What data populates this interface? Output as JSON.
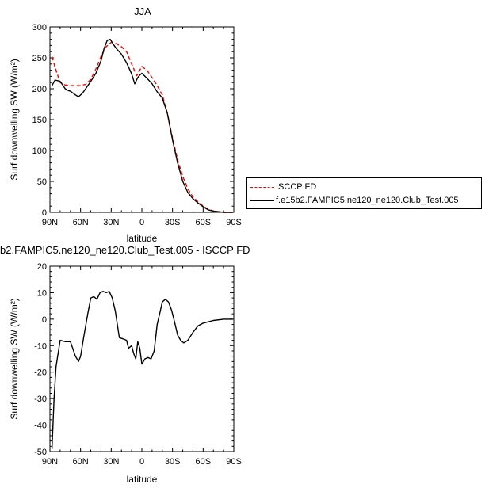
{
  "chart_data": [
    {
      "type": "line",
      "title": "JJA",
      "xlabel": "latitude",
      "ylabel": "Surf downwelling SW (W/m²)",
      "xticks": [
        "90N",
        "60N",
        "30N",
        "0",
        "30S",
        "60S",
        "90S"
      ],
      "yticks": [
        "0",
        "50",
        "100",
        "150",
        "200",
        "250",
        "300"
      ],
      "xlim": [
        90,
        -90
      ],
      "ylim": [
        0,
        300
      ],
      "legend_position": "right",
      "series": [
        {
          "name": "ISCCP FD",
          "color": "#ff0000",
          "dash": "dashed",
          "x": [
            88,
            85,
            80,
            75,
            70,
            65,
            60,
            55,
            50,
            45,
            40,
            35,
            30,
            25,
            20,
            15,
            10,
            5,
            2,
            0,
            -5,
            -10,
            -15,
            -20,
            -25,
            -30,
            -35,
            -40,
            -45,
            -50,
            -55,
            -60,
            -65,
            -70,
            -75,
            -80,
            -85,
            -89
          ],
          "y": [
            252,
            235,
            210,
            206,
            205,
            205,
            205,
            207,
            215,
            232,
            252,
            268,
            275,
            273,
            268,
            260,
            240,
            221,
            230,
            236,
            230,
            218,
            205,
            190,
            160,
            120,
            85,
            58,
            38,
            25,
            17,
            10,
            5,
            2,
            1,
            0,
            0,
            0
          ]
        },
        {
          "name": "f.e15b2.FAMPIC5.ne120_ne120.Club_Test.005",
          "color": "#000000",
          "dash": "solid",
          "x": [
            88,
            85,
            80,
            75,
            72,
            70,
            65,
            62,
            58,
            55,
            50,
            45,
            40,
            37,
            34,
            31,
            28,
            25,
            20,
            15,
            10,
            7,
            4,
            2,
            0,
            -5,
            -10,
            -15,
            -20,
            -25,
            -30,
            -35,
            -40,
            -45,
            -50,
            -55,
            -60,
            -65,
            -70,
            -75,
            -80,
            -85,
            -89
          ],
          "y": [
            205,
            214,
            212,
            200,
            197,
            196,
            190,
            187,
            193,
            200,
            212,
            225,
            245,
            265,
            278,
            280,
            272,
            265,
            256,
            242,
            224,
            208,
            218,
            222,
            225,
            217,
            208,
            195,
            185,
            160,
            117,
            80,
            50,
            32,
            22,
            15,
            9,
            4,
            2,
            1,
            0,
            0,
            0
          ]
        }
      ]
    },
    {
      "type": "line",
      "title": "b2.FAMPIC5.ne120_ne120.Club_Test.005 - ISCCP FD",
      "xlabel": "latitude",
      "ylabel": "Surf downwelling SW (W/m²)",
      "xticks": [
        "90N",
        "60N",
        "30N",
        "0",
        "30S",
        "60S",
        "90S"
      ],
      "yticks": [
        "-50",
        "-40",
        "-30",
        "-20",
        "-10",
        "0",
        "10",
        "20"
      ],
      "xlim": [
        90,
        -90
      ],
      "ylim": [
        -50,
        20
      ],
      "series": [
        {
          "color": "#000000",
          "x": [
            88,
            86,
            84,
            80,
            75,
            70,
            65,
            62,
            60,
            57,
            53,
            50,
            47,
            44,
            41,
            38,
            35,
            32,
            29,
            26,
            22,
            18,
            15,
            13,
            10,
            8,
            6,
            4,
            2,
            0,
            -3,
            -6,
            -9,
            -12,
            -15,
            -18,
            -20,
            -23,
            -26,
            -29,
            -32,
            -35,
            -38,
            -41,
            -45,
            -50,
            -55,
            -60,
            -65,
            -70,
            -80,
            -89
          ],
          "y": [
            -49,
            -30,
            -18,
            -8,
            -8.5,
            -8.5,
            -14,
            -16,
            -14,
            -7,
            2,
            8,
            8.5,
            7.5,
            10,
            10.5,
            10,
            10.5,
            8,
            3,
            -7,
            -7.5,
            -8,
            -11,
            -10,
            -13,
            -15,
            -8.5,
            -11,
            -17,
            -15,
            -14.5,
            -15,
            -12,
            -2,
            3,
            6.5,
            7.5,
            6.5,
            3.5,
            -1,
            -6,
            -8,
            -9,
            -8,
            -5,
            -2.5,
            -1.5,
            -1,
            -0.5,
            0,
            0
          ]
        }
      ]
    }
  ]
}
